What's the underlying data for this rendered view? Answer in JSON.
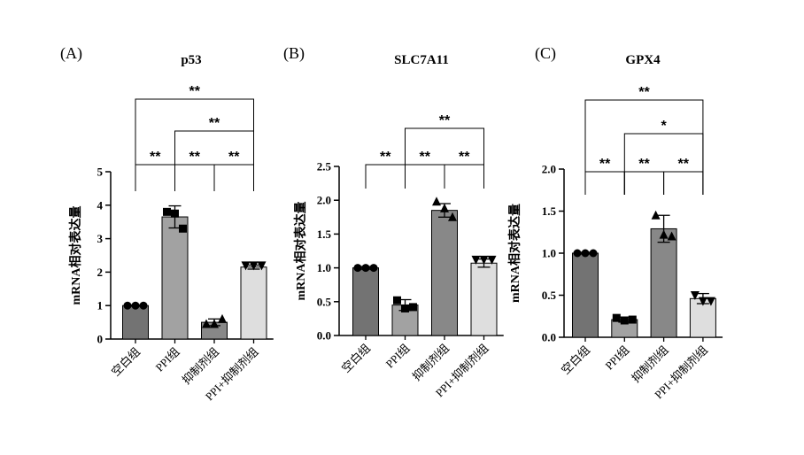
{
  "chart_data": [
    {
      "type": "bar",
      "panel_label": "(A)",
      "title": "p53",
      "ylabel": "mRNA相对表达量",
      "ylim": [
        0,
        5
      ],
      "yticks": [
        "0",
        "1",
        "2",
        "3",
        "4",
        "5"
      ],
      "categories": [
        "空白组",
        "PPI组",
        "抑制剂组",
        "PPI+抑制剂组"
      ],
      "values": [
        1.0,
        3.65,
        0.5,
        2.15
      ],
      "errors": [
        0.02,
        0.33,
        0.1,
        0.06
      ],
      "points": [
        [
          1.0,
          1.0,
          1.0
        ],
        [
          3.8,
          3.75,
          3.3
        ],
        [
          0.45,
          0.45,
          0.6
        ],
        [
          2.2,
          2.2,
          2.2
        ]
      ],
      "bar_colors": [
        "#737373",
        "#a2a2a2",
        "#888888",
        "#dedede"
      ],
      "markers": [
        "circle",
        "square",
        "triangle-up",
        "triangle-down"
      ],
      "significance": [
        {
          "from": 0,
          "to": 1,
          "label": "**"
        },
        {
          "from": 1,
          "to": 2,
          "label": "**"
        },
        {
          "from": 2,
          "to": 3,
          "label": "**"
        },
        {
          "from": 1,
          "to": 3,
          "label": "**"
        },
        {
          "from": 0,
          "to": 3,
          "label": "**"
        }
      ]
    },
    {
      "type": "bar",
      "panel_label": "(B)",
      "title": "SLC7A11",
      "ylabel": "mRNA相对表达量",
      "ylim": [
        0,
        2.5
      ],
      "yticks": [
        "0.0",
        "0.5",
        "1.0",
        "1.5",
        "2.0",
        "2.5"
      ],
      "categories": [
        "空白组",
        "PPI组",
        "抑制剂组",
        "PPI+抑制剂组"
      ],
      "values": [
        1.0,
        0.45,
        1.85,
        1.07
      ],
      "errors": [
        0.02,
        0.08,
        0.1,
        0.06
      ],
      "points": [
        [
          1.0,
          1.0,
          1.0
        ],
        [
          0.52,
          0.4,
          0.42
        ],
        [
          1.98,
          1.88,
          1.75
        ],
        [
          1.12,
          1.12,
          1.12
        ]
      ],
      "bar_colors": [
        "#737373",
        "#a2a2a2",
        "#888888",
        "#dedede"
      ],
      "markers": [
        "circle",
        "square",
        "triangle-up",
        "triangle-down"
      ],
      "significance": [
        {
          "from": 0,
          "to": 1,
          "label": "**"
        },
        {
          "from": 1,
          "to": 2,
          "label": "**"
        },
        {
          "from": 2,
          "to": 3,
          "label": "**"
        },
        {
          "from": 1,
          "to": 3,
          "label": "**"
        }
      ]
    },
    {
      "type": "bar",
      "panel_label": "(C)",
      "title": "GPX4",
      "ylabel": "mRNA相对表达量",
      "ylim": [
        0,
        2.0
      ],
      "yticks": [
        "0.0",
        "0.5",
        "1.0",
        "1.5",
        "2.0"
      ],
      "categories": [
        "空白组",
        "PPI组",
        "抑制剂组",
        "PPI+抑制剂组"
      ],
      "values": [
        1.0,
        0.21,
        1.29,
        0.46
      ],
      "errors": [
        0.01,
        0.03,
        0.16,
        0.06
      ],
      "points": [
        [
          1.0,
          1.0,
          1.0
        ],
        [
          0.23,
          0.2,
          0.21
        ],
        [
          1.45,
          1.22,
          1.2
        ],
        [
          0.5,
          0.43,
          0.43
        ]
      ],
      "bar_colors": [
        "#737373",
        "#a2a2a2",
        "#888888",
        "#dedede"
      ],
      "markers": [
        "circle",
        "square",
        "triangle-up",
        "triangle-down"
      ],
      "significance": [
        {
          "from": 0,
          "to": 1,
          "label": "**"
        },
        {
          "from": 1,
          "to": 2,
          "label": "**"
        },
        {
          "from": 2,
          "to": 3,
          "label": "**"
        },
        {
          "from": 1,
          "to": 3,
          "label": "*"
        },
        {
          "from": 0,
          "to": 3,
          "label": "**"
        }
      ]
    }
  ]
}
